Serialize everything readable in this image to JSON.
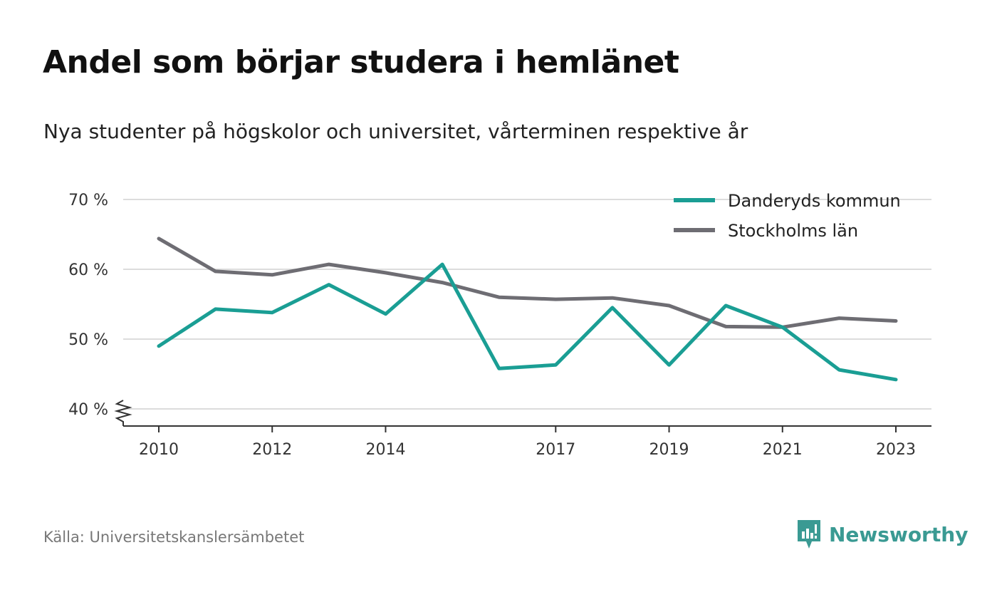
{
  "title": "Andel som börjar studera i hemlänet",
  "subtitle": "Nya studenter på högskolor och universitet, vårterminen respektive år",
  "source": "Källa: Universitetskanslersämbetet",
  "brand": {
    "name": "Newsworthy",
    "icon": "newsworthy-logo-icon",
    "color": "#3a9a93"
  },
  "chart_data": {
    "type": "line",
    "title": "Andel som börjar studera i hemlänet",
    "subtitle": "Nya studenter på högskolor och universitet, vårterminen respektive år",
    "x": [
      2010,
      2011,
      2012,
      2013,
      2014,
      2015,
      2016,
      2017,
      2018,
      2019,
      2020,
      2021,
      2022,
      2023
    ],
    "x_ticks": [
      2010,
      2012,
      2014,
      2017,
      2019,
      2021,
      2023
    ],
    "x_tick_labels": [
      "2010",
      "2012",
      "2014",
      "2017",
      "2019",
      "2021",
      "2023"
    ],
    "y_ticks": [
      40,
      50,
      60,
      70
    ],
    "y_tick_labels": [
      "40 %",
      "50 %",
      "60 %",
      "70 %"
    ],
    "ylim": [
      40,
      70
    ],
    "y_axis_break": true,
    "grid": true,
    "legend_position": "top-right",
    "series": [
      {
        "name": "Danderyds kommun",
        "color": "#1a9e94",
        "values": [
          49.0,
          54.3,
          53.8,
          57.8,
          53.6,
          60.7,
          45.8,
          46.3,
          54.5,
          46.3,
          54.8,
          51.7,
          45.6,
          44.2
        ]
      },
      {
        "name": "Stockholms län",
        "color": "#6e6d73",
        "values": [
          64.4,
          59.7,
          59.2,
          60.7,
          59.5,
          58.1,
          56.0,
          55.7,
          55.9,
          54.8,
          51.8,
          51.7,
          53.0,
          52.6
        ]
      }
    ]
  }
}
